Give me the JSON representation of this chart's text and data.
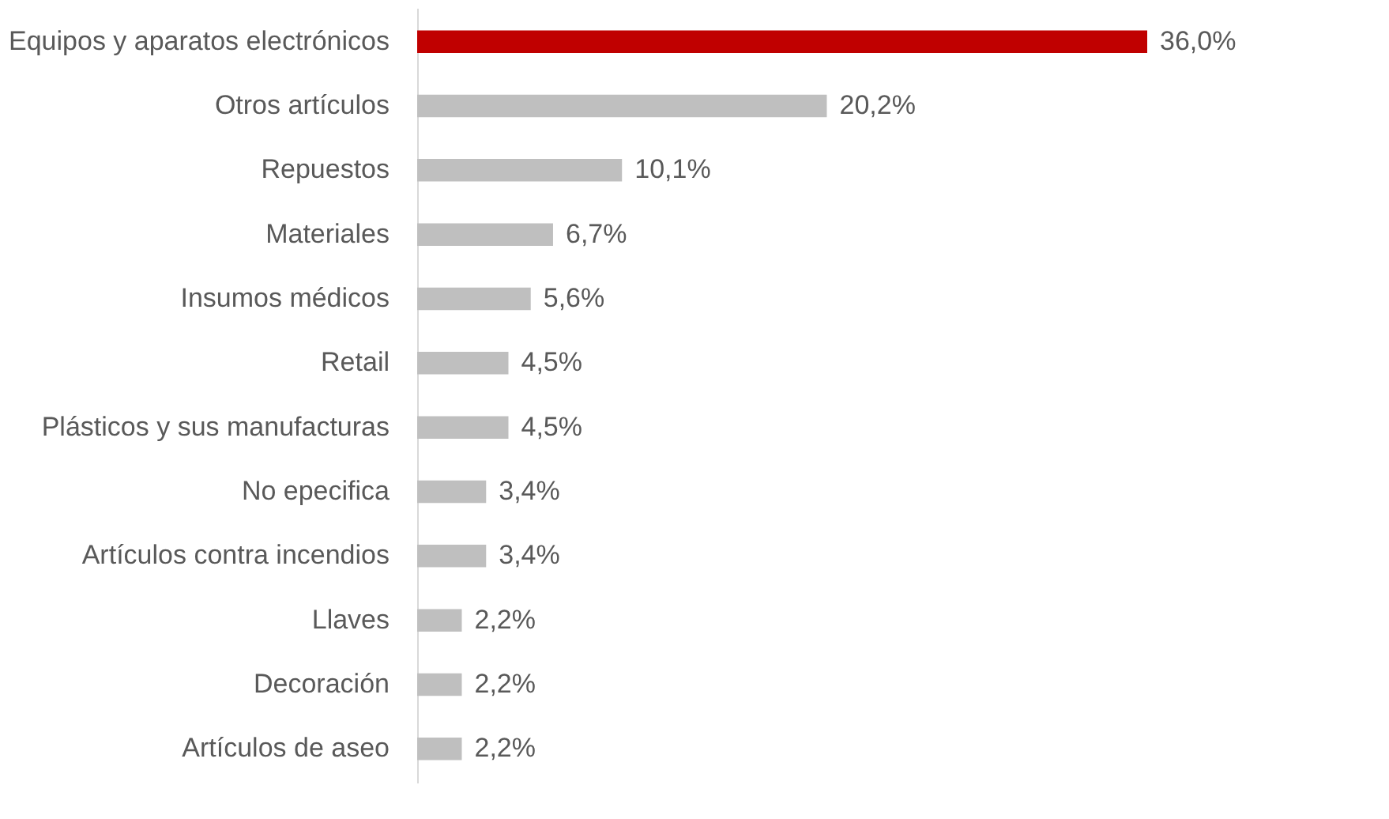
{
  "chart_data": {
    "type": "bar",
    "orientation": "horizontal",
    "categories": [
      "Equipos y aparatos electrónicos",
      "Otros artículos",
      "Repuestos",
      "Materiales",
      "Insumos médicos",
      "Retail",
      "Plásticos y sus manufacturas",
      "No epecifica",
      "Artículos contra incendios",
      "Llaves",
      "Decoración",
      "Artículos de aseo"
    ],
    "values": [
      36.0,
      20.2,
      10.1,
      6.7,
      5.6,
      4.5,
      4.5,
      3.4,
      3.4,
      2.2,
      2.2,
      2.2
    ],
    "colors": [
      "#c00000",
      "#bfbfbf",
      "#bfbfbf",
      "#bfbfbf",
      "#bfbfbf",
      "#bfbfbf",
      "#bfbfbf",
      "#bfbfbf",
      "#bfbfbf",
      "#bfbfbf",
      "#bfbfbf",
      "#bfbfbf"
    ],
    "value_labels": [
      "36,0%",
      "20,2%",
      "10,1%",
      "6,7%",
      "5,6%",
      "4,5%",
      "4,5%",
      "3,4%",
      "3,4%",
      "2,2%",
      "2,2%",
      "2,2%"
    ],
    "grid": false
  }
}
